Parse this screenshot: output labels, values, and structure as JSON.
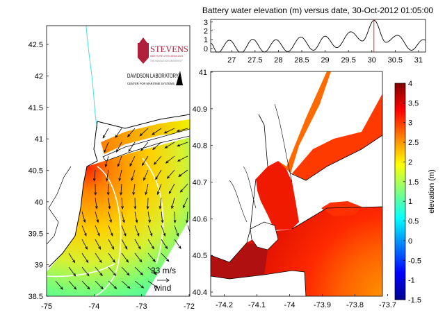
{
  "chart_data": [
    {
      "type": "line",
      "title": "Battery water elevation (m) versus date, 30-Oct-2012 01:05:00",
      "xlim": [
        26.55,
        31.15
      ],
      "ylim": [
        -0.4,
        3.3
      ],
      "x_ticks": [
        27,
        27.5,
        28,
        28.5,
        29,
        29.5,
        30,
        30.5,
        31
      ],
      "x_tick_labels": [
        "27",
        "27.5",
        "28",
        "28.5",
        "29",
        "29.5",
        "30",
        "30.5",
        "31"
      ],
      "y_ticks": [
        0,
        1,
        2,
        3
      ],
      "y_tick_labels": [
        "0",
        "1",
        "2",
        "3"
      ],
      "series": [
        {
          "x": [
            26.55,
            26.7,
            26.95,
            27.2,
            27.45,
            27.7,
            27.95,
            28.2,
            28.48,
            28.75,
            29.0,
            29.25,
            29.55,
            29.8,
            30.05,
            30.3,
            30.55,
            30.85,
            31.1,
            31.15
          ],
          "y": [
            0.6,
            -0.5,
            0.95,
            -0.5,
            1.05,
            -0.4,
            1.0,
            -0.35,
            1.3,
            -0.2,
            1.4,
            0.1,
            1.9,
            0.85,
            3.2,
            0.7,
            1.5,
            -0.2,
            1.0,
            0.95
          ],
          "color": "#000000"
        }
      ],
      "current_time_marker": {
        "x": 30.045,
        "color": "#e03020"
      },
      "grid": false
    },
    {
      "type": "heatmap",
      "description_role": "regional map",
      "x_ticks": [
        -75,
        -74,
        -73,
        -72
      ],
      "x_tick_labels": [
        "-75",
        "-74",
        "-73",
        "-72"
      ],
      "y_ticks": [
        42.5,
        42,
        41.5,
        41,
        40.5,
        40,
        39.5,
        39,
        38.5
      ],
      "y_tick_labels": [
        "42.5",
        "42",
        "41.5",
        "41",
        "40.5",
        "40",
        "39.5",
        "39",
        "38.5"
      ],
      "wind_scale": {
        "value_label": "33 m/s",
        "label": "wind"
      }
    },
    {
      "type": "heatmap",
      "description_role": "harbor map",
      "x_ticks": [
        -74.2,
        -74.1,
        -74,
        -73.9,
        -73.8,
        -73.7
      ],
      "x_tick_labels": [
        "-74.2",
        "-74.1",
        "-74",
        "-73.9",
        "-73.8",
        "-73.7"
      ],
      "y_ticks": [
        41,
        40.9,
        40.8,
        40.7,
        40.6,
        40.5,
        40.4
      ],
      "y_tick_labels": [
        "41",
        "40.9",
        "40.8",
        "40.7",
        "40.6",
        "40.5",
        "40.4"
      ]
    },
    {
      "type": "colorbar",
      "label": "elevation (m)",
      "range": [
        -1.5,
        4
      ],
      "colormap": "jet",
      "ticks": [
        4,
        3.5,
        3,
        2.5,
        2,
        1.5,
        1,
        0.5,
        0,
        -0.5,
        -1,
        -1.5
      ],
      "tick_labels": [
        "4",
        "3.5",
        "3",
        "2.5",
        "2",
        "1.5",
        "1",
        "0.5",
        "0",
        "-0.5",
        "-1",
        "-1.5"
      ]
    }
  ],
  "logos": {
    "stevens": {
      "name": "STEVENS",
      "line1": "INSTITUTE of TECHNOLOGY",
      "line2": "THE INNOVATION UNIVERSITY"
    },
    "davidson": {
      "name": "DAVIDSON LABORATORY",
      "sub": "CENTER FOR MARITIME SYSTEMS"
    }
  }
}
